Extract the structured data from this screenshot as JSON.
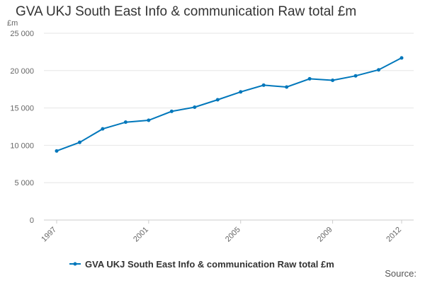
{
  "title": "GVA UKJ South East Info & communication Raw total £m",
  "source_label": "Source:",
  "chart_data": {
    "type": "line",
    "title": "GVA UKJ South East Info & communication Raw total £m",
    "ylabel": "£m",
    "xlabel": "",
    "x": [
      1997,
      1998,
      1999,
      2000,
      2001,
      2002,
      2003,
      2004,
      2005,
      2006,
      2007,
      2008,
      2009,
      2010,
      2011,
      2012
    ],
    "x_tick_labels": [
      "1997",
      "2001",
      "2005",
      "2009",
      "2012"
    ],
    "y_tick_labels": [
      "0",
      "5 000",
      "10 000",
      "15 000",
      "20 000",
      "25 000"
    ],
    "ylim": [
      0,
      25000
    ],
    "grid": true,
    "legend_position": "bottom",
    "series": [
      {
        "name": "GVA UKJ South East Info & communication Raw total £m",
        "color": "#0077bb",
        "values": [
          9250,
          10400,
          12200,
          13100,
          13350,
          14550,
          15100,
          16100,
          17150,
          18050,
          17800,
          18900,
          18700,
          19300,
          20100,
          21700
        ]
      }
    ]
  }
}
